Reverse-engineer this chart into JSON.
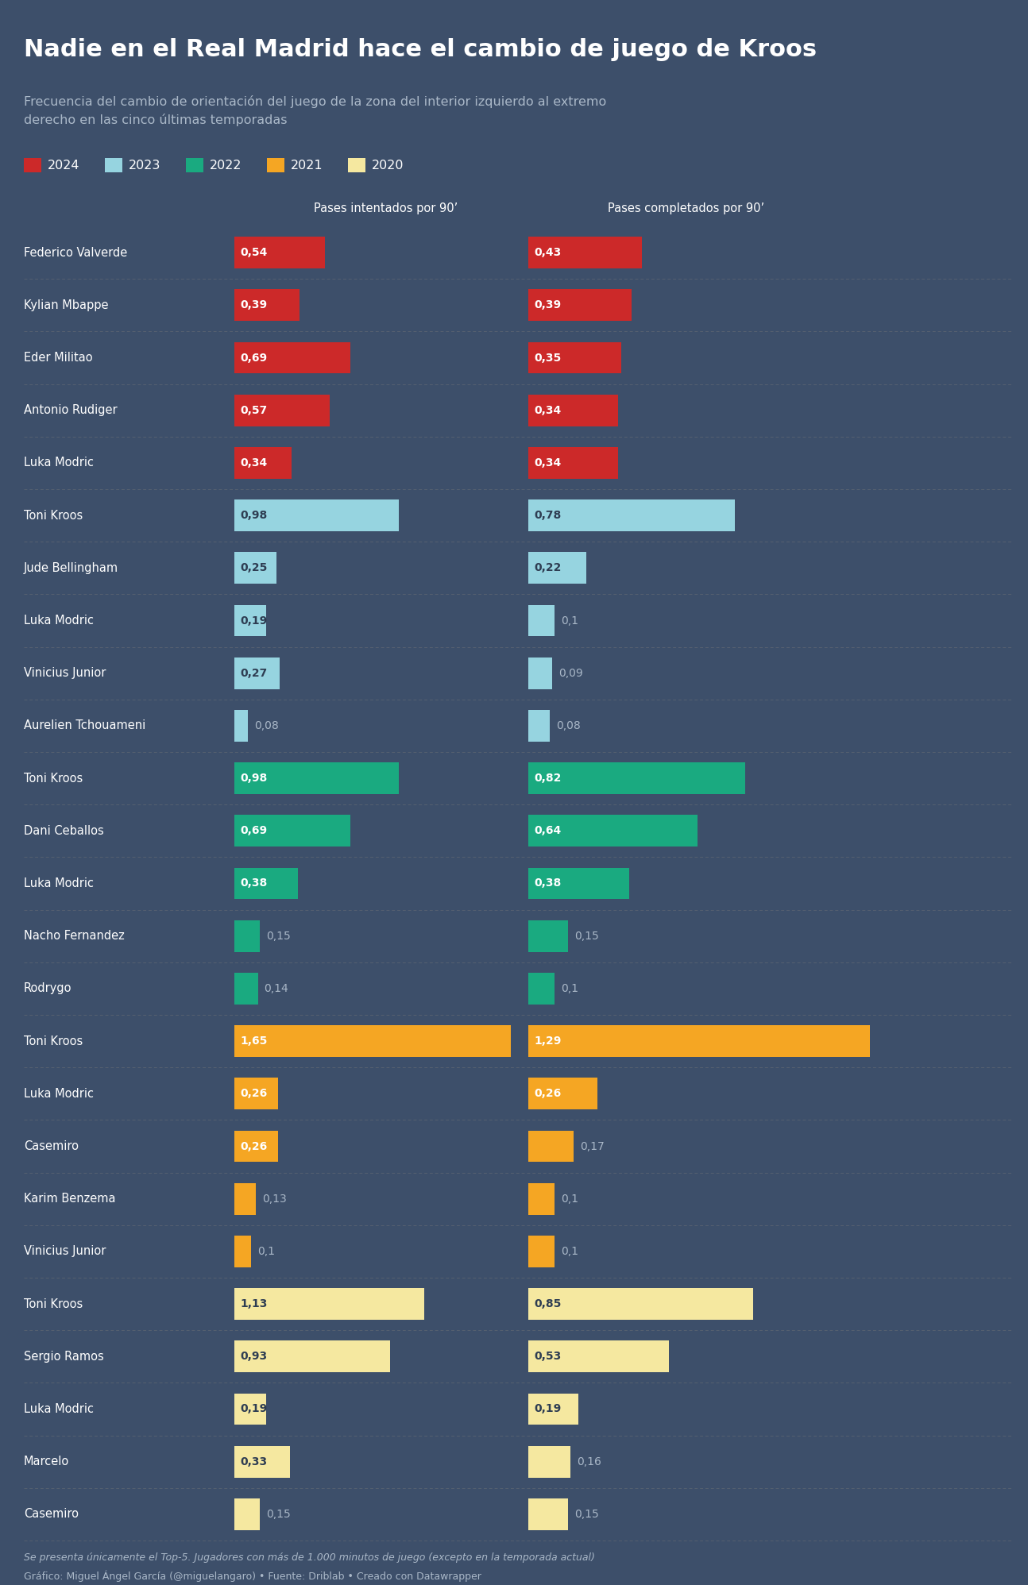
{
  "title": "Nadie en el Real Madrid hace el cambio de juego de Kroos",
  "subtitle": "Frecuencia del cambio de orientación del juego de la zona del interior izquierdo al extremo\nderecho en las cinco últimas temporadas",
  "bg_color": "#3d4f6a",
  "text_color": "#ffffff",
  "dim_color": "#aab8c8",
  "col1_header": "Pases intentados por 90’",
  "col2_header": "Pases completados por 90’",
  "legend": [
    {
      "label": "2024",
      "color": "#cc2929"
    },
    {
      "label": "2023",
      "color": "#96d4e0"
    },
    {
      "label": "2022",
      "color": "#1aaa80"
    },
    {
      "label": "2021",
      "color": "#f5a623"
    },
    {
      "label": "2020",
      "color": "#f5e8a0"
    }
  ],
  "colors": {
    "2024": "#cc2929",
    "2023": "#96d4e0",
    "2022": "#1aaa80",
    "2021": "#f5a623",
    "2020": "#f5e8a0"
  },
  "label_inside_color": {
    "2024": "#ffffff",
    "2023": "#2e3d52",
    "2022": "#ffffff",
    "2021": "#ffffff",
    "2020": "#2e3d52"
  },
  "rows": [
    {
      "name": "Federico Valverde",
      "year": "2024",
      "attempted": 0.54,
      "completed": 0.43
    },
    {
      "name": "Kylian Mbappe",
      "year": "2024",
      "attempted": 0.39,
      "completed": 0.39
    },
    {
      "name": "Eder Militao",
      "year": "2024",
      "attempted": 0.69,
      "completed": 0.35
    },
    {
      "name": "Antonio Rudiger",
      "year": "2024",
      "attempted": 0.57,
      "completed": 0.34
    },
    {
      "name": "Luka Modric",
      "year": "2024",
      "attempted": 0.34,
      "completed": 0.34
    },
    {
      "name": "Toni Kroos",
      "year": "2023",
      "attempted": 0.98,
      "completed": 0.78
    },
    {
      "name": "Jude Bellingham",
      "year": "2023",
      "attempted": 0.25,
      "completed": 0.22
    },
    {
      "name": "Luka Modric",
      "year": "2023",
      "attempted": 0.19,
      "completed": 0.1
    },
    {
      "name": "Vinicius Junior",
      "year": "2023",
      "attempted": 0.27,
      "completed": 0.09
    },
    {
      "name": "Aurelien Tchouameni",
      "year": "2023",
      "attempted": 0.08,
      "completed": 0.08
    },
    {
      "name": "Toni Kroos",
      "year": "2022",
      "attempted": 0.98,
      "completed": 0.82
    },
    {
      "name": "Dani Ceballos",
      "year": "2022",
      "attempted": 0.69,
      "completed": 0.64
    },
    {
      "name": "Luka Modric",
      "year": "2022",
      "attempted": 0.38,
      "completed": 0.38
    },
    {
      "name": "Nacho Fernandez",
      "year": "2022",
      "attempted": 0.15,
      "completed": 0.15
    },
    {
      "name": "Rodrygo",
      "year": "2022",
      "attempted": 0.14,
      "completed": 0.1
    },
    {
      "name": "Toni Kroos",
      "year": "2021",
      "attempted": 1.65,
      "completed": 1.29
    },
    {
      "name": "Luka Modric",
      "year": "2021",
      "attempted": 0.26,
      "completed": 0.26
    },
    {
      "name": "Casemiro",
      "year": "2021",
      "attempted": 0.26,
      "completed": 0.17
    },
    {
      "name": "Karim Benzema",
      "year": "2021",
      "attempted": 0.13,
      "completed": 0.1
    },
    {
      "name": "Vinicius Junior",
      "year": "2021",
      "attempted": 0.1,
      "completed": 0.1
    },
    {
      "name": "Toni Kroos",
      "year": "2020",
      "attempted": 1.13,
      "completed": 0.85
    },
    {
      "name": "Sergio Ramos",
      "year": "2020",
      "attempted": 0.93,
      "completed": 0.53
    },
    {
      "name": "Luka Modric",
      "year": "2020",
      "attempted": 0.19,
      "completed": 0.19
    },
    {
      "name": "Marcelo",
      "year": "2020",
      "attempted": 0.33,
      "completed": 0.16
    },
    {
      "name": "Casemiro",
      "year": "2020",
      "attempted": 0.15,
      "completed": 0.15
    }
  ],
  "footnote1": "Se presenta únicamente el Top-5. Jugadores con más de 1.000 minutos de juego (excepto en la temporada actual)",
  "footnote2": "Gráfico: Miguel Ángel García (@miguelangaro) • Fuente: Driblab • Creado con Datawrapper",
  "max_val": 1.8
}
